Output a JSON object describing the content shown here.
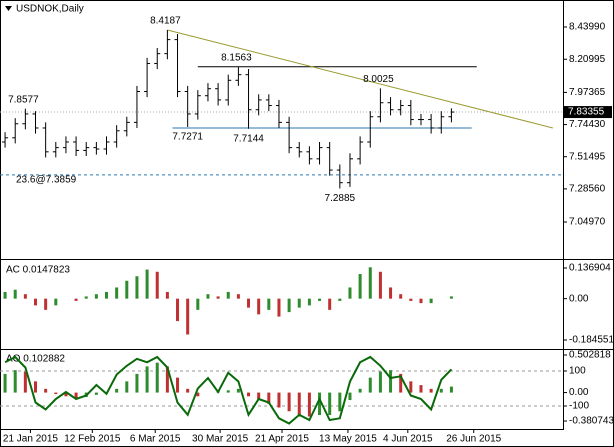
{
  "chart_data": [
    {
      "type": "ohlc",
      "title": "USDNOK,Daily",
      "color": "#000000",
      "open": [
        7.62,
        7.65,
        7.75,
        7.82,
        7.72,
        7.55,
        7.58,
        7.62,
        7.56,
        7.58,
        7.57,
        7.62,
        7.7,
        7.76,
        7.98,
        8.18,
        8.25,
        8.35,
        7.98,
        7.82,
        7.95,
        8.0,
        7.92,
        8.06,
        8.1,
        7.85,
        7.92,
        7.88,
        7.76,
        7.58,
        7.55,
        7.5,
        7.58,
        7.42,
        7.33,
        7.5,
        7.62,
        7.8,
        7.9,
        7.85,
        7.88,
        7.78,
        7.78,
        7.72,
        7.8
      ],
      "high": [
        7.69,
        7.79,
        7.8577,
        7.84,
        7.76,
        7.62,
        7.66,
        7.66,
        7.62,
        7.62,
        7.66,
        7.74,
        7.8,
        8.02,
        8.22,
        8.29,
        8.4187,
        8.39,
        8.02,
        7.99,
        8.04,
        8.04,
        8.1,
        8.1563,
        8.14,
        7.96,
        7.96,
        7.92,
        7.8,
        7.62,
        7.59,
        7.62,
        7.62,
        7.46,
        7.54,
        7.66,
        7.84,
        8.0025,
        7.94,
        7.92,
        7.92,
        7.82,
        7.82,
        7.84,
        7.86
      ],
      "low": [
        7.58,
        7.61,
        7.71,
        7.68,
        7.51,
        7.51,
        7.54,
        7.52,
        7.52,
        7.53,
        7.53,
        7.58,
        7.66,
        7.72,
        7.94,
        8.14,
        8.21,
        7.94,
        7.7271,
        7.78,
        7.91,
        7.88,
        7.88,
        8.02,
        7.7144,
        7.81,
        7.84,
        7.72,
        7.54,
        7.51,
        7.46,
        7.46,
        7.38,
        7.2885,
        7.3,
        7.46,
        7.58,
        7.76,
        7.81,
        7.81,
        7.74,
        7.74,
        7.68,
        7.68,
        7.76
      ],
      "close": [
        7.65,
        7.75,
        7.82,
        7.72,
        7.55,
        7.58,
        7.62,
        7.56,
        7.58,
        7.57,
        7.62,
        7.7,
        7.76,
        7.98,
        8.18,
        8.25,
        8.35,
        7.98,
        7.82,
        7.95,
        8.0,
        7.92,
        8.06,
        8.1,
        7.85,
        7.92,
        7.88,
        7.76,
        7.58,
        7.55,
        7.5,
        7.58,
        7.42,
        7.33,
        7.5,
        7.62,
        7.8,
        7.9,
        7.85,
        7.88,
        7.78,
        7.78,
        7.72,
        7.8,
        7.83355
      ],
      "xlim": [
        -0.5,
        55
      ],
      "ylim": [
        6.793,
        8.6324
      ],
      "yticks": [
        {
          "value": 8.4399,
          "label": "8.43990"
        },
        {
          "value": 8.20995,
          "label": "8.20995"
        },
        {
          "value": 7.97365,
          "label": "7.97365"
        },
        {
          "value": 7.7443,
          "label": "7.74430"
        },
        {
          "value": 7.51495,
          "label": "7.51495"
        },
        {
          "value": 7.2856,
          "label": "7.28560"
        },
        {
          "value": 7.0497,
          "label": "7.04970"
        }
      ],
      "last_price": 7.83355,
      "annotations": [
        {
          "value": 7.8577,
          "x": 2,
          "side": "above"
        },
        {
          "value": 8.4187,
          "x": 16,
          "side": "above"
        },
        {
          "value": 7.7271,
          "x": 18,
          "side": "below"
        },
        {
          "value": 8.1563,
          "x": 23,
          "side": "above"
        },
        {
          "value": 7.7144,
          "x": 24,
          "side": "below"
        },
        {
          "value": 7.2885,
          "x": 33,
          "side": "below"
        },
        {
          "value": 8.0025,
          "x": 37,
          "side": "above"
        }
      ],
      "trendline": {
        "points": [
          [
            16,
            8.4187
          ],
          [
            54,
            7.72
          ]
        ],
        "color": "#9a9a30"
      },
      "hlines": [
        {
          "value": 8.1563,
          "from": 19,
          "to": 46.5,
          "color": "#000000"
        },
        {
          "value": 7.72,
          "from": 16.5,
          "to": 46,
          "color": "#2a7ab0"
        }
      ],
      "fib": {
        "label": "23.6@7.3859",
        "value": 7.3859,
        "color": "#2a7ab0"
      }
    },
    {
      "type": "bar",
      "label": "AC 0.0147823",
      "up_color": "#2e8b2e",
      "down_color": "#c03030",
      "values": [
        0.03,
        0.04,
        0.02,
        -0.03,
        -0.05,
        -0.03,
        0.0,
        -0.01,
        0.01,
        0.02,
        0.03,
        0.05,
        0.08,
        0.1,
        0.13,
        0.12,
        0.03,
        -0.1,
        -0.16,
        -0.05,
        0.02,
        0.01,
        0.03,
        0.02,
        -0.04,
        -0.07,
        -0.05,
        -0.08,
        -0.06,
        -0.04,
        -0.03,
        -0.01,
        -0.05,
        -0.01,
        0.05,
        0.11,
        0.14,
        0.12,
        0.05,
        0.02,
        -0.01,
        -0.02,
        -0.02,
        0.0,
        0.01
      ],
      "xlim": [
        -0.5,
        55
      ],
      "ylim": [
        -0.2203,
        0.1637
      ],
      "yticks": [
        0.136904,
        {
          "value": 0,
          "label": "0.00"
        },
        -0.184551
      ]
    },
    {
      "type": "bar",
      "label": "AO 0.102882",
      "up_color": "#2e8b2e",
      "down_color": "#c03030",
      "values": [
        0.25,
        0.3,
        0.28,
        0.15,
        0.05,
        -0.02,
        -0.05,
        -0.08,
        -0.06,
        -0.03,
        0.0,
        0.05,
        0.15,
        0.25,
        0.35,
        0.4,
        0.35,
        0.2,
        0.05,
        -0.05,
        0.0,
        0.02,
        0.03,
        0.05,
        -0.05,
        -0.1,
        -0.15,
        -0.2,
        -0.25,
        -0.3,
        -0.32,
        -0.3,
        -0.3,
        -0.25,
        -0.1,
        0.05,
        0.2,
        0.28,
        0.3,
        0.25,
        0.15,
        0.1,
        0.05,
        0.05,
        0.08
      ],
      "line": {
        "color": "#0a6a0a",
        "axis": "y2",
        "values": [
          150,
          180,
          120,
          -80,
          -120,
          -60,
          -20,
          -60,
          -40,
          20,
          -30,
          80,
          130,
          170,
          150,
          180,
          120,
          -80,
          -150,
          0,
          60,
          -20,
          90,
          40,
          -150,
          -60,
          -80,
          -170,
          -200,
          -150,
          -180,
          -60,
          -180,
          -170,
          40,
          150,
          180,
          130,
          60,
          70,
          -40,
          -60,
          -120,
          50,
          110
        ]
      },
      "xlim": [
        -0.5,
        55
      ],
      "ylim": [
        -0.474,
        0.543
      ],
      "yticks": [
        0.502818,
        {
          "value": 0,
          "label": "0.00"
        },
        -0.380743
      ],
      "y2lim": [
        -225.7,
        208.6
      ],
      "y2ticks": [
        100,
        -100
      ],
      "xticks": [
        {
          "value": 2.5,
          "label": "21 Jan 2015"
        },
        {
          "value": 8.6,
          "label": "12 Feb 2015"
        },
        {
          "value": 14.8,
          "label": "6 Mar 2015"
        },
        {
          "value": 21.2,
          "label": "30 Mar 2015"
        },
        {
          "value": 27.3,
          "label": "21 Apr 2015"
        },
        {
          "value": 33.8,
          "label": "13 May 2015"
        },
        {
          "value": 39.7,
          "label": "4 Jun 2015"
        },
        {
          "value": 46.2,
          "label": "26 Jun 2015"
        }
      ]
    }
  ]
}
